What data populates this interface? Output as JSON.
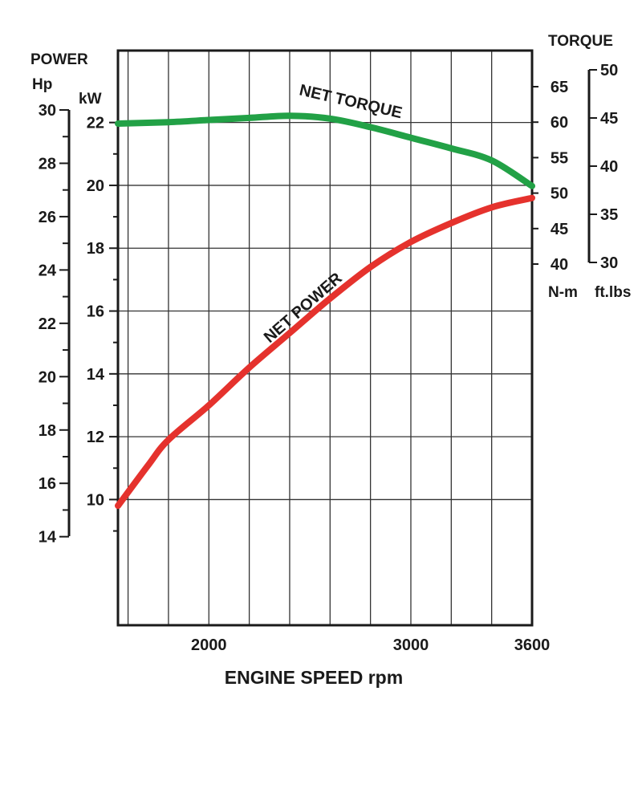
{
  "chart_data": {
    "type": "line",
    "xlabel": "ENGINE SPEED rpm",
    "x_ticks": [
      2000,
      3000,
      3600
    ],
    "x_range": [
      1550,
      3600
    ],
    "grid": true,
    "left_axes": {
      "title": "POWER",
      "hp": {
        "unit": "Hp",
        "ticks": [
          30,
          28,
          26,
          24,
          22,
          20,
          18,
          16,
          14
        ],
        "range": [
          13.9,
          30
        ]
      },
      "kw": {
        "unit": "kW",
        "ticks": [
          22,
          20,
          18,
          16,
          14,
          12,
          10
        ],
        "range": [
          6,
          22.4
        ]
      }
    },
    "right_axes": {
      "title": "TORQUE",
      "nm": {
        "unit": "N-m",
        "ticks": [
          65,
          60,
          55,
          50,
          45,
          40
        ],
        "range": [
          40,
          65
        ]
      },
      "ftlbs": {
        "unit": "ft.lbs",
        "ticks": [
          50,
          45,
          40,
          35,
          30
        ],
        "range": [
          30,
          50
        ]
      }
    },
    "series": [
      {
        "name": "NET TORQUE",
        "color": "#22a146",
        "axis": "N-m",
        "x": [
          1550,
          1800,
          2000,
          2200,
          2400,
          2600,
          2800,
          3000,
          3200,
          3400,
          3600
        ],
        "y": [
          59.8,
          60.0,
          60.3,
          60.6,
          60.9,
          60.5,
          59.3,
          57.8,
          56.3,
          54.6,
          51.0
        ]
      },
      {
        "name": "NET POWER",
        "color": "#e5322d",
        "axis": "kW",
        "x": [
          1550,
          1700,
          1800,
          2000,
          2200,
          2400,
          2600,
          2800,
          3000,
          3200,
          3400,
          3600
        ],
        "y": [
          9.8,
          11.1,
          11.9,
          13.0,
          14.2,
          15.3,
          16.4,
          17.4,
          18.2,
          18.8,
          19.3,
          19.6
        ]
      }
    ]
  }
}
